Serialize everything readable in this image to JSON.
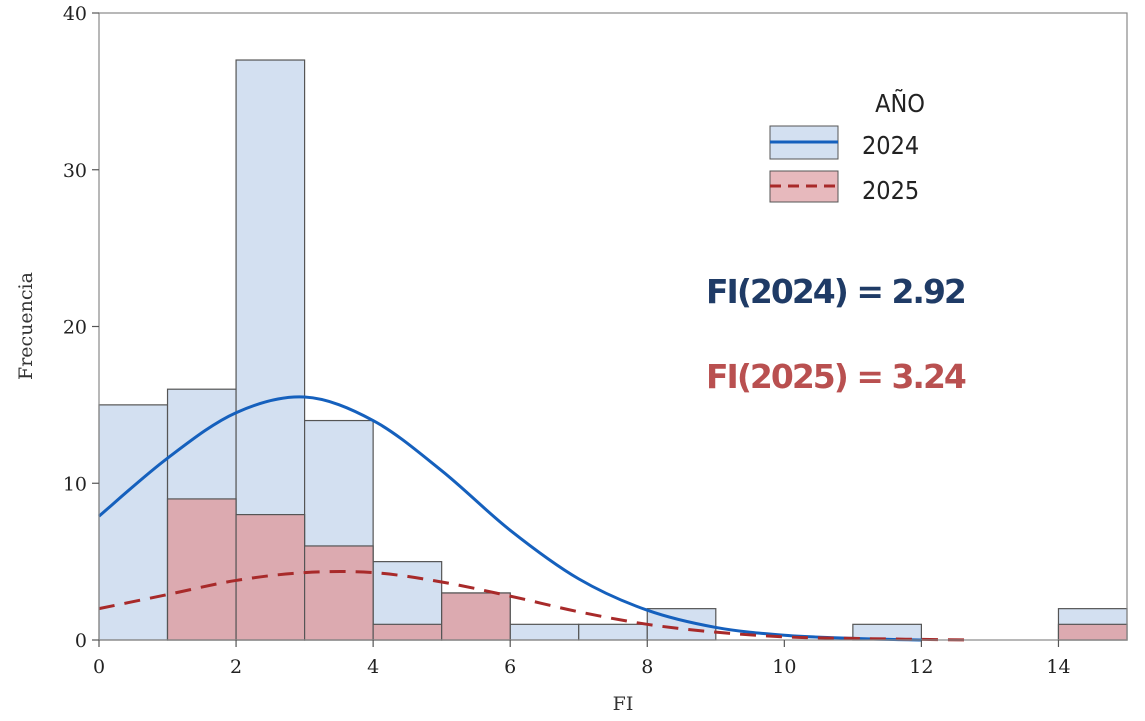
{
  "chart_data": {
    "type": "bar",
    "xlabel": "FI",
    "ylabel": "Frecuencia",
    "xlim": [
      0,
      15
    ],
    "ylim": [
      0,
      40
    ],
    "xticks": [
      0,
      2,
      4,
      6,
      8,
      10,
      12,
      14
    ],
    "yticks": [
      0,
      10,
      20,
      30,
      40
    ],
    "bins": [
      [
        0,
        1
      ],
      [
        1,
        2
      ],
      [
        2,
        3
      ],
      [
        3,
        4
      ],
      [
        4,
        5
      ],
      [
        5,
        6
      ],
      [
        6,
        7
      ],
      [
        7,
        8
      ],
      [
        8,
        9
      ],
      [
        9,
        10
      ],
      [
        10,
        11
      ],
      [
        11,
        12
      ],
      [
        12,
        13
      ],
      [
        13,
        14
      ],
      [
        14,
        15
      ]
    ],
    "legend": {
      "title": "AÑO",
      "position": "top-right"
    },
    "series": [
      {
        "name": "2024",
        "counts": [
          15,
          16,
          37,
          14,
          5,
          3,
          1,
          1,
          2,
          0,
          0,
          1,
          0,
          0,
          2
        ],
        "fill": "#d3e0f1",
        "curve_color": "#1560bd",
        "curve_style": "solid",
        "curve_points": [
          [
            0,
            7.9
          ],
          [
            1,
            11.6
          ],
          [
            2,
            14.5
          ],
          [
            3,
            15.5
          ],
          [
            4,
            14.0
          ],
          [
            5,
            10.8
          ],
          [
            6,
            7.0
          ],
          [
            7,
            3.9
          ],
          [
            8,
            1.9
          ],
          [
            9,
            0.8
          ],
          [
            10,
            0.3
          ],
          [
            11,
            0.1
          ],
          [
            12,
            0.0
          ]
        ]
      },
      {
        "name": "2025",
        "counts": [
          0,
          9,
          8,
          6,
          1,
          3,
          0,
          0,
          0,
          0,
          0,
          0,
          0,
          0,
          1
        ],
        "fill": "#dcaab0",
        "curve_color": "#a82a2a",
        "curve_style": "dashed",
        "curve_points": [
          [
            0,
            2.0
          ],
          [
            1,
            2.9
          ],
          [
            2,
            3.8
          ],
          [
            3,
            4.3
          ],
          [
            4,
            4.3
          ],
          [
            5,
            3.7
          ],
          [
            6,
            2.8
          ],
          [
            7,
            1.8
          ],
          [
            8,
            1.0
          ],
          [
            9,
            0.5
          ],
          [
            10,
            0.2
          ],
          [
            11,
            0.1
          ],
          [
            12.7,
            0.0
          ]
        ]
      }
    ],
    "annotations": [
      "FI(2024) = 2.92",
      "FI(2025) = 3.24"
    ]
  }
}
